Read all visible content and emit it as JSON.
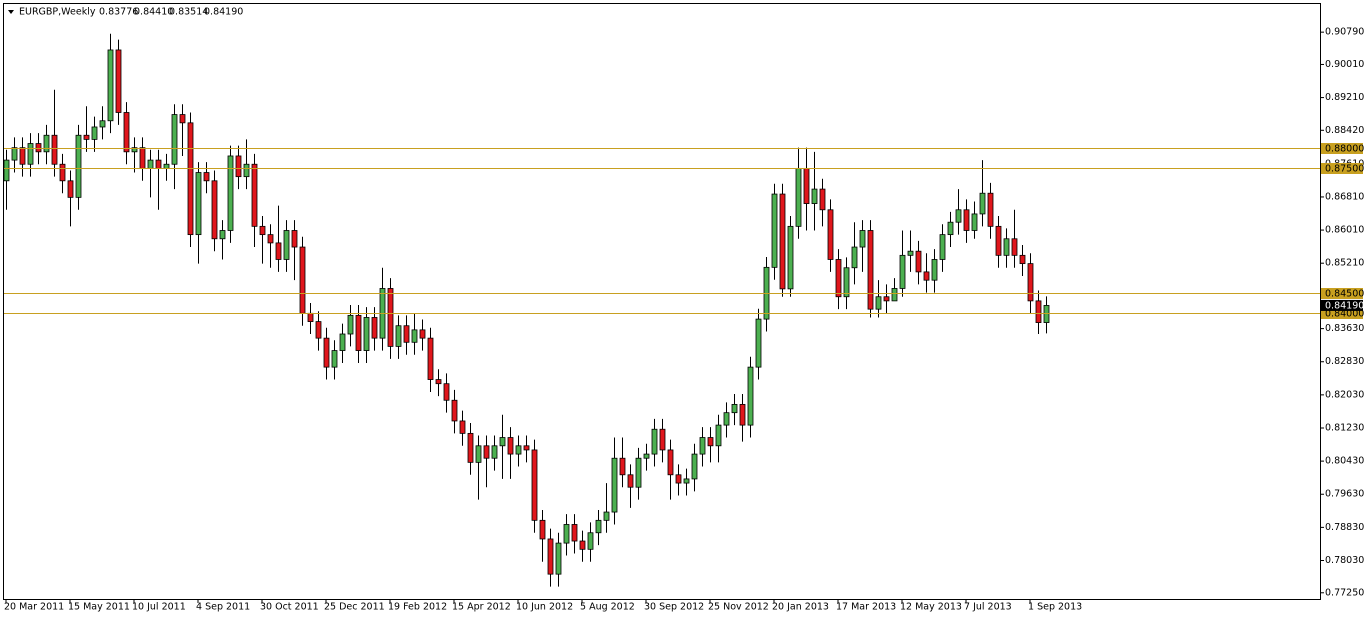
{
  "chart_data": {
    "type": "candlestick",
    "title": "EURGBP,Weekly",
    "quote_labels": [
      "0.83776",
      "0.84410",
      "0.83514",
      "0.84190"
    ],
    "categories": [
      "20 Mar 2011",
      null,
      null,
      null,
      null,
      null,
      null,
      null,
      "15 May 2011",
      null,
      null,
      null,
      null,
      null,
      null,
      null,
      "10 Jul 2011",
      null,
      null,
      null,
      null,
      null,
      null,
      null,
      "4 Sep 2011",
      null,
      null,
      null,
      null,
      null,
      null,
      null,
      "30 Oct 2011",
      null,
      null,
      null,
      null,
      null,
      null,
      null,
      "25 Dec 2011",
      null,
      null,
      null,
      null,
      null,
      null,
      null,
      "19 Feb 2012",
      null,
      null,
      null,
      null,
      null,
      null,
      null,
      "15 Apr 2012",
      null,
      null,
      null,
      null,
      null,
      null,
      null,
      "10 Jun 2012",
      null,
      null,
      null,
      null,
      null,
      null,
      null,
      "5 Aug 2012",
      null,
      null,
      null,
      null,
      null,
      null,
      null,
      "30 Sep 2012",
      null,
      null,
      null,
      null,
      null,
      null,
      null,
      "25 Nov 2012",
      null,
      null,
      null,
      null,
      null,
      null,
      null,
      "20 Jan 2013",
      null,
      null,
      null,
      null,
      null,
      null,
      null,
      "17 Mar 2013",
      null,
      null,
      null,
      null,
      null,
      null,
      null,
      "12 May 2013",
      null,
      null,
      null,
      null,
      null,
      null,
      null,
      "7 Jul 2013",
      null,
      null,
      null,
      null,
      null,
      null,
      null,
      "1 Sep 2013",
      null,
      null
    ],
    "open": [
      0.872,
      0.877,
      0.88,
      0.876,
      0.881,
      0.879,
      0.883,
      0.876,
      0.872,
      0.868,
      0.883,
      0.882,
      0.885,
      0.8865,
      0.9036,
      0.8885,
      0.879,
      0.88,
      0.875,
      0.877,
      0.875,
      0.876,
      0.888,
      0.886,
      0.859,
      0.874,
      0.872,
      0.858,
      0.86,
      0.878,
      0.873,
      0.876,
      0.861,
      0.859,
      0.857,
      0.853,
      0.86,
      0.856,
      0.84,
      0.838,
      0.834,
      0.827,
      0.831,
      0.835,
      0.8395,
      0.831,
      0.839,
      0.834,
      0.846,
      0.832,
      0.837,
      0.833,
      0.836,
      0.834,
      0.824,
      0.823,
      0.819,
      0.814,
      0.811,
      0.804,
      0.808,
      0.805,
      0.808,
      0.81,
      0.806,
      0.808,
      0.807,
      0.79,
      0.7855,
      0.777,
      0.7845,
      0.789,
      0.785,
      0.783,
      0.787,
      0.79,
      0.792,
      0.805,
      0.801,
      0.798,
      0.805,
      0.806,
      0.812,
      0.807,
      0.801,
      0.799,
      0.8,
      0.806,
      0.81,
      0.808,
      0.813,
      0.816,
      0.818,
      0.813,
      0.827,
      0.8386,
      0.8511,
      0.8688,
      0.8459,
      0.861,
      0.875,
      0.8665,
      0.87,
      0.865,
      0.853,
      0.844,
      0.851,
      0.856,
      0.86,
      0.841,
      0.844,
      0.843,
      0.846,
      0.854,
      0.855,
      0.85,
      0.848,
      0.853,
      0.859,
      0.862,
      0.865,
      0.86,
      0.864,
      0.869,
      0.861,
      0.854,
      0.858,
      0.854,
      0.852,
      0.843,
      0.83776
    ],
    "high": [
      0.8795,
      0.8825,
      0.8825,
      0.8835,
      0.8835,
      0.8855,
      0.894,
      0.8785,
      0.8745,
      0.8855,
      0.89,
      0.8875,
      0.89,
      0.9075,
      0.9061,
      0.891,
      0.8825,
      0.8825,
      0.8795,
      0.8795,
      0.8785,
      0.8905,
      0.8905,
      0.8885,
      0.8765,
      0.8765,
      0.8745,
      0.8625,
      0.8805,
      0.8805,
      0.882,
      0.8785,
      0.8635,
      0.8615,
      0.866,
      0.8625,
      0.8625,
      0.8585,
      0.8425,
      0.8405,
      0.8365,
      0.8335,
      0.8375,
      0.842,
      0.842,
      0.8415,
      0.8415,
      0.851,
      0.8485,
      0.8395,
      0.8395,
      0.84,
      0.8385,
      0.8365,
      0.8265,
      0.8255,
      0.8215,
      0.8165,
      0.8135,
      0.8105,
      0.8105,
      0.8105,
      0.8155,
      0.8125,
      0.8105,
      0.8105,
      0.8095,
      0.7925,
      0.788,
      0.787,
      0.7915,
      0.7915,
      0.7875,
      0.7895,
      0.7925,
      0.799,
      0.81,
      0.81,
      0.8035,
      0.8075,
      0.8085,
      0.8145,
      0.8145,
      0.8095,
      0.8035,
      0.8025,
      0.8085,
      0.8125,
      0.8125,
      0.8155,
      0.8185,
      0.8205,
      0.8205,
      0.8295,
      0.8411,
      0.8536,
      0.8713,
      0.8713,
      0.8635,
      0.88,
      0.88,
      0.879,
      0.8725,
      0.8675,
      0.8555,
      0.8535,
      0.862,
      0.8625,
      0.8625,
      0.848,
      0.847,
      0.8485,
      0.86,
      0.86,
      0.8575,
      0.8545,
      0.8555,
      0.8615,
      0.8645,
      0.87,
      0.8675,
      0.867,
      0.877,
      0.8715,
      0.8635,
      0.8605,
      0.865,
      0.8565,
      0.8545,
      0.8455,
      0.8441
    ],
    "low": [
      0.865,
      0.874,
      0.873,
      0.873,
      0.876,
      0.876,
      0.873,
      0.869,
      0.861,
      0.865,
      0.879,
      0.879,
      0.882,
      0.8835,
      0.8855,
      0.876,
      0.874,
      0.872,
      0.868,
      0.865,
      0.872,
      0.87,
      0.878,
      0.856,
      0.852,
      0.869,
      0.855,
      0.853,
      0.857,
      0.87,
      0.87,
      0.856,
      0.852,
      0.851,
      0.85,
      0.85,
      0.848,
      0.837,
      0.835,
      0.831,
      0.824,
      0.824,
      0.828,
      0.832,
      0.828,
      0.828,
      0.831,
      0.831,
      0.829,
      0.829,
      0.83,
      0.83,
      0.831,
      0.821,
      0.82,
      0.816,
      0.811,
      0.808,
      0.801,
      0.795,
      0.798,
      0.802,
      0.8,
      0.8,
      0.803,
      0.804,
      0.787,
      0.78,
      0.774,
      0.774,
      0.7815,
      0.782,
      0.78,
      0.78,
      0.784,
      0.787,
      0.789,
      0.798,
      0.793,
      0.795,
      0.802,
      0.803,
      0.804,
      0.795,
      0.796,
      0.796,
      0.797,
      0.803,
      0.804,
      0.804,
      0.81,
      0.813,
      0.809,
      0.81,
      0.824,
      0.8356,
      0.8481,
      0.844,
      0.844,
      0.858,
      0.86,
      0.86,
      0.861,
      0.85,
      0.841,
      0.841,
      0.847,
      0.85,
      0.839,
      0.839,
      0.84,
      0.843,
      0.844,
      0.85,
      0.847,
      0.845,
      0.845,
      0.85,
      0.856,
      0.859,
      0.857,
      0.858,
      0.861,
      0.858,
      0.851,
      0.851,
      0.851,
      0.849,
      0.84,
      0.835,
      0.83514
    ],
    "close": [
      0.877,
      0.88,
      0.876,
      0.881,
      0.879,
      0.883,
      0.876,
      0.872,
      0.868,
      0.883,
      0.882,
      0.885,
      0.8865,
      0.9036,
      0.8885,
      0.879,
      0.88,
      0.875,
      0.877,
      0.875,
      0.876,
      0.888,
      0.886,
      0.859,
      0.874,
      0.872,
      0.858,
      0.86,
      0.878,
      0.873,
      0.876,
      0.861,
      0.859,
      0.857,
      0.853,
      0.86,
      0.856,
      0.84,
      0.838,
      0.834,
      0.827,
      0.831,
      0.835,
      0.8395,
      0.831,
      0.839,
      0.834,
      0.846,
      0.832,
      0.837,
      0.833,
      0.836,
      0.834,
      0.824,
      0.823,
      0.819,
      0.814,
      0.811,
      0.804,
      0.808,
      0.805,
      0.808,
      0.81,
      0.806,
      0.808,
      0.807,
      0.79,
      0.7855,
      0.777,
      0.7845,
      0.789,
      0.785,
      0.783,
      0.787,
      0.79,
      0.792,
      0.805,
      0.801,
      0.798,
      0.805,
      0.806,
      0.812,
      0.807,
      0.801,
      0.799,
      0.8,
      0.806,
      0.81,
      0.808,
      0.813,
      0.816,
      0.818,
      0.813,
      0.827,
      0.8386,
      0.8511,
      0.8688,
      0.8459,
      0.861,
      0.875,
      0.8665,
      0.87,
      0.865,
      0.853,
      0.844,
      0.851,
      0.856,
      0.86,
      0.841,
      0.844,
      0.843,
      0.846,
      0.854,
      0.855,
      0.85,
      0.848,
      0.853,
      0.859,
      0.862,
      0.865,
      0.86,
      0.864,
      0.869,
      0.861,
      0.854,
      0.858,
      0.854,
      0.852,
      0.843,
      0.83776,
      0.8419
    ],
    "up_color": "#4cb050",
    "down_color": "#e0161c",
    "ylim": [
      0.771,
      0.9147
    ],
    "yticks": [
      {
        "value": 0.9079,
        "label": "0.90790"
      },
      {
        "value": 0.9001,
        "label": "0.90010"
      },
      {
        "value": 0.8921,
        "label": "0.89210"
      },
      {
        "value": 0.8842,
        "label": "0.88420"
      },
      {
        "value": 0.8761,
        "label": "0.87610"
      },
      {
        "value": 0.8681,
        "label": "0.86810"
      },
      {
        "value": 0.8601,
        "label": "0.86010"
      },
      {
        "value": 0.8521,
        "label": "0.85210"
      },
      {
        "value": 0.8363,
        "label": "0.83630"
      },
      {
        "value": 0.8283,
        "label": "0.82830"
      },
      {
        "value": 0.8203,
        "label": "0.82030"
      },
      {
        "value": 0.8123,
        "label": "0.81230"
      },
      {
        "value": 0.8043,
        "label": "0.80430"
      },
      {
        "value": 0.7963,
        "label": "0.79630"
      },
      {
        "value": 0.7883,
        "label": "0.78830"
      },
      {
        "value": 0.7803,
        "label": "0.78030"
      },
      {
        "value": 0.7725,
        "label": "0.77250"
      }
    ],
    "level_color": "#c8a020",
    "levels": [
      {
        "value": 0.88,
        "label": "0.88000"
      },
      {
        "value": 0.875,
        "label": "0.87500"
      },
      {
        "value": 0.845,
        "label": "0.84500"
      },
      {
        "value": 0.84,
        "label": "0.84000"
      }
    ],
    "current_price": {
      "value": 0.8419,
      "label": "0.84190"
    }
  }
}
